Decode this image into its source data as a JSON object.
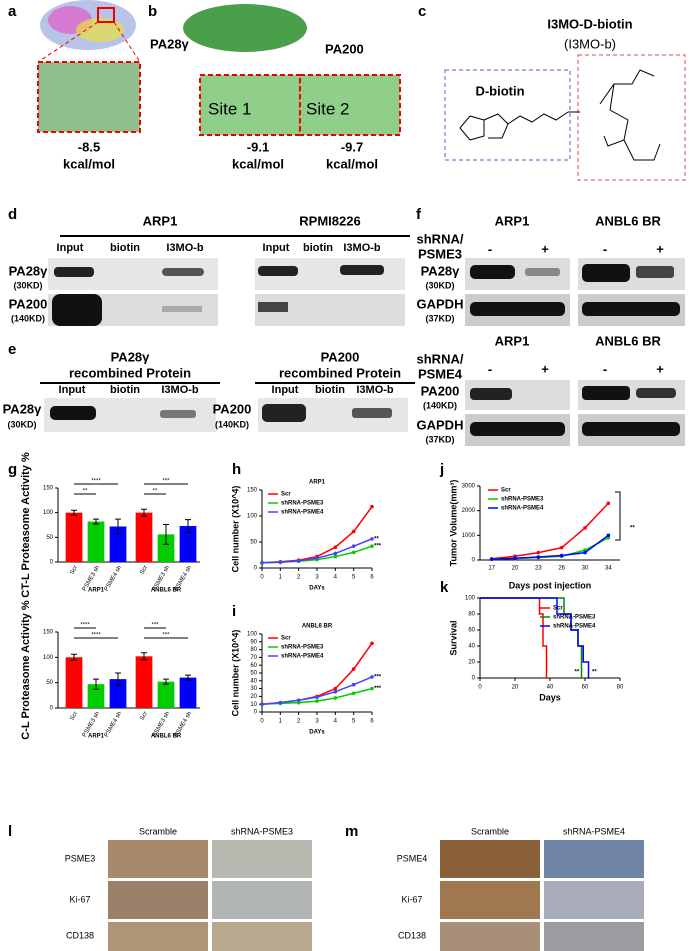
{
  "figure": {
    "a": {
      "label": "a",
      "protein": "PA28γ",
      "energy": "-8.5",
      "unit": "kcal/mol"
    },
    "b": {
      "label": "b",
      "protein": "PA200",
      "site1": "Site 1",
      "site2": "Site 2",
      "energy1": "-9.1",
      "energy2": "-9.7",
      "unit1": "kcal/mol",
      "unit2": "kcal/mol"
    },
    "c": {
      "label": "c",
      "compound": "I3MO-D-biotin",
      "abbr": "(I3MO-b)",
      "part": "D-biotin"
    },
    "d": {
      "label": "d",
      "cell1": "ARP1",
      "cell2": "RPMI8226",
      "lanes1": [
        "Input",
        "biotin",
        "I3MO-b"
      ],
      "lanes2": [
        "Input",
        "biotin",
        "I3MO-b"
      ],
      "rows": [
        [
          "PA28γ",
          "(30KD)"
        ],
        [
          "PA200",
          "(140KD)"
        ]
      ]
    },
    "e": {
      "label": "e",
      "title1": [
        "PA28γ",
        "recombined Protein"
      ],
      "title2": [
        "PA200",
        "recombined Protein"
      ],
      "lanes1": [
        "Input",
        "biotin",
        "I3MO-b"
      ],
      "lanes2": [
        "Input",
        "biotin",
        "I3MO-b"
      ],
      "row1": [
        "PA28γ",
        "(30KD)"
      ],
      "row2": [
        "PA200",
        "(140KD)"
      ]
    },
    "f": {
      "label": "f",
      "top": {
        "cell1": "ARP1",
        "cell2": "ANBL6 BR",
        "sh": [
          "shRNA/",
          "PSME3"
        ],
        "signs": [
          "-",
          "+",
          "-",
          "+"
        ],
        "rows": [
          [
            "PA28γ",
            "(30KD)"
          ],
          [
            "GAPDH",
            "(37KD)"
          ]
        ]
      },
      "bottom": {
        "cell1": "ARP1",
        "cell2": "ANBL6 BR",
        "sh": [
          "shRNA/",
          "PSME4"
        ],
        "signs": [
          "-",
          "+",
          "-",
          "+"
        ],
        "rows": [
          [
            "PA200",
            "(140KD)"
          ],
          [
            "GAPDH",
            "(37KD)"
          ]
        ]
      }
    },
    "labels": {
      "g": "g",
      "h": "h",
      "i": "i",
      "j": "j",
      "k": "k"
    },
    "l": {
      "label": "l",
      "cols": [
        "Scramble",
        "shRNA-PSME3"
      ],
      "rows": [
        "PSME3",
        "Ki-67",
        "CD138"
      ]
    },
    "m": {
      "label": "m",
      "cols": [
        "Scramble",
        "shRNA-PSME4"
      ],
      "rows": [
        "PSME4",
        "Ki-67",
        "CD138"
      ]
    }
  },
  "chart_data": [
    {
      "type": "bar",
      "ylabel": "CT-L Proteasome Activity %",
      "categories": [
        "Scr",
        "PSME3 sh",
        "PSME4 sh",
        "Scr",
        "PSME3 sh",
        "PSME4 sh"
      ],
      "groups": [
        "ARP1",
        "ANBL6 BR"
      ],
      "values": [
        100,
        82,
        72,
        100,
        56,
        73
      ],
      "errors": [
        5,
        5,
        15,
        7,
        20,
        13
      ],
      "colors": [
        "#ff0000",
        "#00cc00",
        "#0000ff",
        "#ff0000",
        "#00cc00",
        "#0000ff"
      ],
      "ylim": [
        0,
        150
      ],
      "yticks": [
        0,
        50,
        100,
        150
      ],
      "annotations": [
        "****",
        "**",
        "***",
        "**"
      ]
    },
    {
      "type": "bar",
      "ylabel": "C-L Proteasome Activity %",
      "categories": [
        "Scr",
        "PSME3 sh",
        "PSME4 sh",
        "Scr",
        "PSME3 sh",
        "PSME4 sh"
      ],
      "groups": [
        "ARP1",
        "ANBL6 BR"
      ],
      "values": [
        100,
        47,
        57,
        102,
        52,
        60
      ],
      "errors": [
        6,
        10,
        12,
        7,
        5,
        5
      ],
      "colors": [
        "#ff0000",
        "#00cc00",
        "#0000ff",
        "#ff0000",
        "#00cc00",
        "#0000ff"
      ],
      "ylim": [
        0,
        150
      ],
      "yticks": [
        0,
        50,
        100,
        150
      ],
      "annotations": [
        "****",
        "****",
        "***",
        "***"
      ]
    },
    {
      "type": "line",
      "title": "ARP1",
      "xlabel": "DAYs",
      "ylabel": "Cell number (X10^4)",
      "x": [
        0,
        1,
        2,
        3,
        4,
        5,
        6
      ],
      "xlim": [
        0,
        6
      ],
      "xticks": [
        0,
        1,
        2,
        3,
        4,
        5,
        6
      ],
      "ylim": [
        0,
        150
      ],
      "yticks": [
        0,
        50,
        100,
        150
      ],
      "series": [
        {
          "name": "Scr",
          "color": "#ff0000",
          "values": [
            10,
            12,
            15,
            22,
            40,
            70,
            118
          ]
        },
        {
          "name": "shRNA-PSME3",
          "color": "#00cc00",
          "values": [
            10,
            11,
            13,
            16,
            22,
            30,
            42
          ]
        },
        {
          "name": "shRNA-PSME4",
          "color": "#4444ff",
          "values": [
            10,
            11,
            14,
            19,
            28,
            42,
            56
          ]
        }
      ],
      "annotations": [
        "***",
        "**"
      ]
    },
    {
      "type": "line",
      "title": "ANBL6 BR",
      "xlabel": "DAYs",
      "ylabel": "Cell number (X10^4)",
      "x": [
        0,
        1,
        2,
        3,
        4,
        5,
        6
      ],
      "xlim": [
        0,
        6
      ],
      "xticks": [
        0,
        1,
        2,
        3,
        4,
        5,
        6
      ],
      "ylim": [
        0,
        100
      ],
      "yticks": [
        0,
        10,
        20,
        30,
        40,
        50,
        60,
        70,
        80,
        90,
        100
      ],
      "series": [
        {
          "name": "Scr",
          "color": "#ff0000",
          "values": [
            10,
            12,
            15,
            20,
            30,
            55,
            88
          ]
        },
        {
          "name": "shRNA-PSME3",
          "color": "#00cc00",
          "values": [
            10,
            11,
            12,
            14,
            18,
            24,
            30
          ]
        },
        {
          "name": "shRNA-PSME4",
          "color": "#4444ff",
          "values": [
            10,
            12,
            15,
            19,
            26,
            35,
            45
          ]
        }
      ],
      "annotations": [
        "***",
        "***"
      ]
    },
    {
      "type": "line",
      "xlabel": "Days post injection",
      "ylabel": "Tumor Volume(mm³)",
      "categories": [
        "17",
        "20",
        "23",
        "26",
        "30",
        "34"
      ],
      "ylim": [
        0,
        3000
      ],
      "yticks": [
        0,
        1000,
        2000,
        3000
      ],
      "series": [
        {
          "name": "Scr",
          "color": "#ff0000",
          "values": [
            50,
            150,
            300,
            500,
            1300,
            2300
          ]
        },
        {
          "name": "shRNA-PSME3",
          "color": "#00cc00",
          "values": [
            30,
            60,
            100,
            150,
            400,
            900
          ]
        },
        {
          "name": "shRNA-PSME4",
          "color": "#0000ff",
          "values": [
            30,
            70,
            120,
            180,
            300,
            1000
          ]
        }
      ],
      "annotations": [
        "**"
      ]
    },
    {
      "type": "step",
      "xlabel": "Days",
      "ylabel": "Survival",
      "xlim": [
        0,
        80
      ],
      "xticks": [
        0,
        20,
        40,
        60,
        80
      ],
      "ylim": [
        0,
        100
      ],
      "yticks": [
        0,
        20,
        40,
        60,
        80,
        100
      ],
      "series": [
        {
          "name": "Scr",
          "color": "#ff0000",
          "x": [
            0,
            34,
            36,
            38
          ],
          "values": [
            100,
            80,
            40,
            0
          ]
        },
        {
          "name": "shRNA-PSME3",
          "color": "#008800",
          "x": [
            0,
            48,
            52,
            56,
            58
          ],
          "values": [
            100,
            80,
            60,
            40,
            0
          ]
        },
        {
          "name": "shRNA-PSME4",
          "color": "#0000ff",
          "x": [
            0,
            44,
            52,
            56,
            59,
            62
          ],
          "values": [
            100,
            80,
            60,
            40,
            20,
            0
          ]
        }
      ],
      "annotations": [
        "**",
        "**"
      ]
    }
  ]
}
